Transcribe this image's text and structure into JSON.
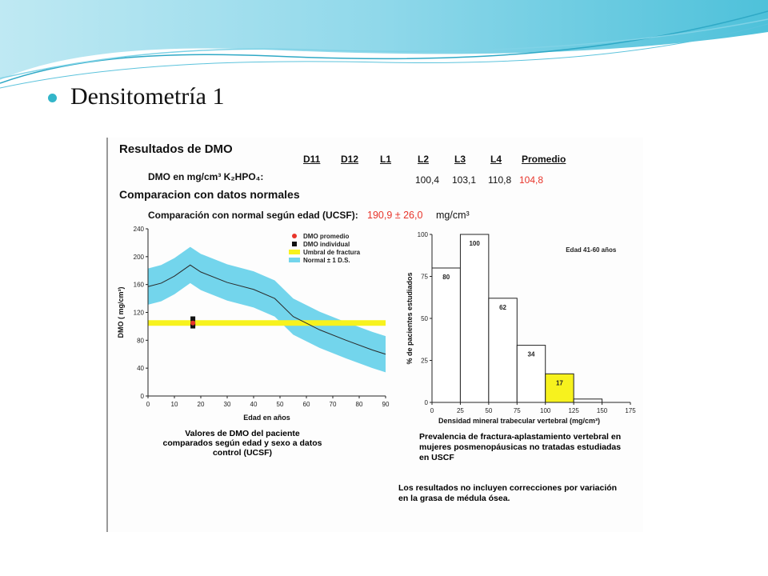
{
  "slide": {
    "title": "Densitometría 1"
  },
  "colors": {
    "accent": "#33b5c9",
    "band": "#73d5ec",
    "threshold": "#f7f21e",
    "red": "#e8342a",
    "bar_highlight": "#f7f21e"
  },
  "report": {
    "heading": "Resultados de DMO",
    "dmo_unit_label": "DMO en mg/cm³ K₂HPO₄:",
    "columns": [
      "D11",
      "D12",
      "L1",
      "L2",
      "L3",
      "L4",
      "Promedio"
    ],
    "values": [
      "",
      "",
      "",
      "100,4",
      "103,1",
      "110,8",
      "104,8"
    ],
    "comparison_heading": "Comparacion con datos normales",
    "age_comparison_label": "Comparación con normal según edad (UCSF):",
    "age_comparison_value": "190,9 ± 26,0",
    "age_comparison_unit": "mg/cm³",
    "left_caption": [
      "Valores de DMO del paciente",
      "comparados según edad y sexo a datos",
      "control (UCSF)"
    ],
    "right_caption": [
      "Prevalencia de fractura-aplastamiento vertebral en",
      "mujeres posmenopáusicas no tratadas estudiadas",
      "en USCF"
    ],
    "note": [
      "Los resultados no incluyen correcciones por variación",
      "en la grasa de médula ósea."
    ]
  },
  "chart_data": [
    {
      "type": "line",
      "xlabel": "Edad en años",
      "ylabel": "DMO ( mg/cm³)",
      "xlim": [
        0,
        90
      ],
      "ylim": [
        0,
        240
      ],
      "xticks": [
        "0",
        "10",
        "20",
        "30",
        "40",
        "50",
        "60",
        "70",
        "80",
        "90"
      ],
      "yticks": [
        "0",
        "40",
        "80",
        "120",
        "160",
        "200",
        "240"
      ],
      "legend": [
        "DMO promedio",
        "DMO individual",
        "Umbral de fractura",
        "Normal ± 1 D.S."
      ],
      "legend_position": "top-right",
      "normal_mean": {
        "x": [
          0,
          5,
          10,
          16,
          20,
          30,
          40,
          48,
          55,
          65,
          75,
          85,
          90
        ],
        "y": [
          157,
          162,
          172,
          188,
          178,
          163,
          153,
          140,
          114,
          95,
          80,
          66,
          60
        ]
      },
      "normal_sd": 26,
      "fracture_threshold": 104.8,
      "patient": {
        "age": 17,
        "dmo_promedio": 104.8,
        "dmo_individual": [
          100.4,
          103.1,
          110.8
        ]
      }
    },
    {
      "type": "bar",
      "label": "Edad 41-60 años",
      "xlabel": "Densidad mineral trabecular vertebral (mg/cm³)",
      "ylabel": "% de pacientes estudiados",
      "bins": [
        [
          0,
          25
        ],
        [
          25,
          50
        ],
        [
          50,
          75
        ],
        [
          75,
          100
        ],
        [
          100,
          125
        ],
        [
          125,
          150
        ]
      ],
      "values": [
        80,
        100,
        62,
        34,
        17,
        2
      ],
      "value_labels": [
        "80",
        "100",
        "62",
        "34",
        "17",
        ""
      ],
      "highlight_index": 4,
      "xticks": [
        "0",
        "25",
        "50",
        "75",
        "100",
        "125",
        "150",
        "175"
      ],
      "yticks": [
        "0",
        "25",
        "50",
        "75",
        "100"
      ],
      "xlim": [
        0,
        175
      ],
      "ylim": [
        0,
        100
      ]
    }
  ]
}
